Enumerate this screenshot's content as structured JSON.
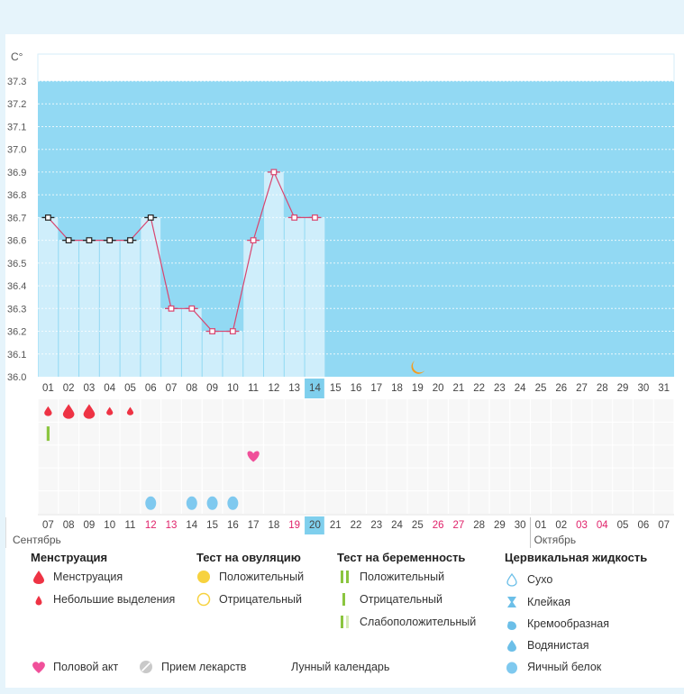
{
  "chart_data": {
    "type": "line",
    "ylabel": "C°",
    "ylim": [
      36.0,
      37.3
    ],
    "yticks": [
      "36.0",
      "36.1",
      "36.2",
      "36.3",
      "36.4",
      "36.5",
      "36.6",
      "36.7",
      "36.8",
      "36.9",
      "37.0",
      "37.1",
      "37.2",
      "37.3"
    ],
    "cycle_days": [
      "01",
      "02",
      "03",
      "04",
      "05",
      "06",
      "07",
      "08",
      "09",
      "10",
      "11",
      "12",
      "13",
      "14",
      "15",
      "16",
      "17",
      "18",
      "19",
      "20",
      "21",
      "22",
      "23",
      "24",
      "25",
      "26",
      "27",
      "28",
      "29",
      "30",
      "31"
    ],
    "current_day": "14",
    "temperatures": [
      36.7,
      36.6,
      36.6,
      36.6,
      36.6,
      36.7,
      36.3,
      36.3,
      36.2,
      36.2,
      36.6,
      36.9,
      36.7,
      36.7
    ],
    "marker_styles": [
      "black",
      "black",
      "black",
      "black",
      "black",
      "black",
      "red",
      "red",
      "red",
      "red",
      "red",
      "red",
      "red",
      "red"
    ],
    "dates": [
      "07",
      "08",
      "09",
      "10",
      "11",
      "12",
      "13",
      "14",
      "15",
      "16",
      "17",
      "18",
      "19",
      "20",
      "21",
      "22",
      "23",
      "24",
      "25",
      "26",
      "27",
      "28",
      "29",
      "30",
      "01",
      "02",
      "03",
      "04",
      "05",
      "06",
      "07"
    ],
    "highlighted_dates": [
      "12",
      "13",
      "19",
      "26",
      "27",
      "03",
      "04"
    ],
    "current_date": "20",
    "month_labels": [
      "Сентябрь",
      "Октябрь"
    ],
    "moon_day": "19",
    "events": {
      "menstruation_heavy_days": [
        "02",
        "03"
      ],
      "menstruation_days": [
        "01"
      ],
      "spotting_days": [
        "04",
        "05"
      ],
      "pregnancy_test_negative_days": [
        "01"
      ],
      "intercourse_days": [
        "11"
      ],
      "egg_white_days": [
        "06",
        "08",
        "09",
        "10"
      ]
    },
    "colors": {
      "background": "#92d9f3",
      "past_fill": "#cfeefb",
      "line": "#d9456f",
      "today": "#7fcfed",
      "drop": "#ee3344",
      "heart": "#f0509a",
      "egg_white": "#7fc9ef",
      "moon": "#f39c1f",
      "highlight_text": "#e0226a"
    }
  },
  "legend": {
    "menstruation": {
      "title": "Менструация",
      "items": [
        "Менструация",
        "Небольшие выделения"
      ]
    },
    "ovulation": {
      "title": "Тест на овуляцию",
      "items": [
        "Положительный",
        "Отрицательный"
      ]
    },
    "pregnancy": {
      "title": "Тест на беременность",
      "items": [
        "Положительный",
        "Отрицательный",
        "Слабоположительный"
      ]
    },
    "cervical": {
      "title": "Цервикальная жидкость",
      "items": [
        "Сухо",
        "Клейкая",
        "Кремообразная",
        "Водянистая",
        "Яичный белок"
      ]
    },
    "extra": [
      "Половой акт",
      "Прием лекарств",
      "Лунный календарь"
    ]
  },
  "icons": {
    "drop": "drop-icon",
    "small_drop": "small-drop-icon",
    "ovulation_positive": "yellow-circle-icon",
    "ovulation_negative": "hollow-circle-icon",
    "pregnancy": "bar-icon",
    "heart": "heart-icon",
    "medicine": "pill-icon",
    "moon": "moon-icon",
    "cervical": [
      "hollow-drop-icon",
      "hourglass-icon",
      "half-drop-icon",
      "drop-icon",
      "egg-white-icon"
    ]
  }
}
